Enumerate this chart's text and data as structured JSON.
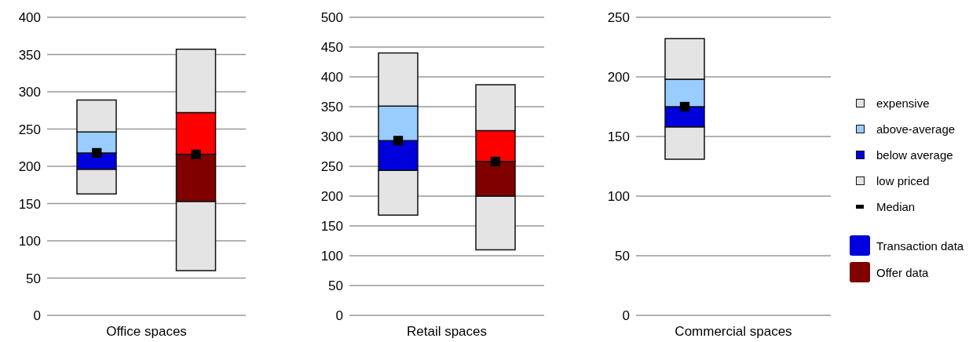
{
  "chart_data": [
    {
      "type": "bar",
      "xlabel": "Office spaces",
      "categories": [
        null,
        null
      ],
      "series": [
        {
          "color": "#e4e4e4",
          "base": [
            163,
            60
          ],
          "values": [
            33,
            93
          ]
        },
        {
          "color": "#0000dd",
          "colors": [
            "#0000dd",
            "#800000"
          ],
          "base": [
            196,
            153
          ],
          "values": [
            22,
            63
          ]
        },
        {
          "color": "#99ccff",
          "colors": [
            "#99ccff",
            "#ff0000"
          ],
          "base": [
            218,
            216
          ],
          "values": [
            28,
            56
          ]
        },
        {
          "color": "#e4e4e4",
          "base": [
            246,
            272
          ],
          "values": [
            43,
            85
          ]
        },
        {
          "type": "scatter",
          "marker": "square",
          "color": "#000000",
          "values": [
            218,
            216
          ]
        }
      ],
      "ylim": [
        0,
        400
      ],
      "yticks": [
        0,
        50,
        100,
        150,
        200,
        250,
        300,
        350,
        400
      ],
      "grid": "y"
    },
    {
      "type": "bar",
      "xlabel": "Retail spaces",
      "categories": [
        null,
        null
      ],
      "series": [
        {
          "color": "#e4e4e4",
          "base": [
            168,
            110
          ],
          "values": [
            75,
            90
          ]
        },
        {
          "color": "#0000dd",
          "colors": [
            "#0000dd",
            "#800000"
          ],
          "base": [
            243,
            200
          ],
          "values": [
            50,
            58
          ]
        },
        {
          "color": "#99ccff",
          "colors": [
            "#99ccff",
            "#ff0000"
          ],
          "base": [
            293,
            258
          ],
          "values": [
            58,
            52
          ]
        },
        {
          "color": "#e4e4e4",
          "base": [
            351,
            310
          ],
          "values": [
            89,
            77
          ]
        },
        {
          "type": "scatter",
          "marker": "square",
          "color": "#000000",
          "values": [
            293,
            258
          ]
        }
      ],
      "ylim": [
        0,
        500
      ],
      "yticks": [
        0,
        50,
        100,
        150,
        200,
        250,
        300,
        350,
        400,
        450,
        500
      ],
      "grid": "y"
    },
    {
      "type": "bar",
      "xlabel": "Commercial spaces",
      "categories": [
        null,
        null
      ],
      "series": [
        {
          "name": "low priced",
          "color": "#e4e4e4",
          "base": [
            131,
            null
          ],
          "values": [
            27,
            null
          ]
        },
        {
          "name": "below average",
          "color": "#0000dd",
          "colors": [
            "#0000dd",
            "#800000"
          ],
          "base": [
            158,
            null
          ],
          "values": [
            17,
            null
          ]
        },
        {
          "name": "above-average",
          "color": "#99ccff",
          "colors": [
            "#99ccff",
            "#ff0000"
          ],
          "base": [
            175,
            null
          ],
          "values": [
            23,
            null
          ]
        },
        {
          "name": "expensive",
          "color": "#e4e4e4",
          "base": [
            198,
            null
          ],
          "values": [
            34,
            null
          ]
        },
        {
          "name": "Median",
          "type": "scatter",
          "marker": "square",
          "color": "#000000",
          "values": [
            175,
            null
          ]
        }
      ],
      "ylim": [
        0,
        250
      ],
      "yticks": [
        0,
        50,
        100,
        150,
        200,
        250
      ],
      "grid": "y",
      "legend": "right",
      "annotations": [
        "Transaction data",
        "Offer data"
      ]
    }
  ]
}
